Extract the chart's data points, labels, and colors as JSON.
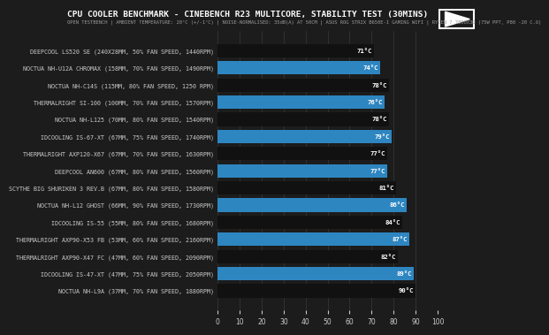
{
  "title": "CPU COOLER BENCHMARK - CINEBENCH R23 MULTICORE, STABILITY TEST (30MINS)",
  "subtitle": "OPEN TESTBENCH | AMBIENT TEMPERATURE: 20°C (+/-1°C) | NOISE-NORMALISED: 35dB(A) AT 50CM | ASUS ROG STRIX B650E-I GAMING WIFI | RYZEN 7 7800X3D (75W PPT, P80 -20 C.O)",
  "categories": [
    "DEEPCOOL LS520 SE (240X28MM, 50% FAN SPEED, 1440RPM)",
    "NOCTUA NH-U12A CHROMAX (158MM, 70% FAN SPEED, 1490RPM)",
    "NOCTUA NH-C14S (115MM, 80% FAN SPEED, 1250 RPM)",
    "THERMALRIGHT SI-100 (100MM, 70% FAN SPEED, 1570RPM)",
    "NOCTUA NH-L125 (70MM, 80% FAN SPEED, 1540RPM)",
    "IDCOOLING IS-67-XT (67MM, 75% FAN SPEED, 1740RPM)",
    "THERMALRIGHT AXP120-X67 (67MM, 70% FAN SPEED, 1630RPM)",
    "DEEPCOOL AN600 (67MM, 80% FAN SPEED, 1560RPM)",
    "SCYTHE BIG SHURIKEN 3 REV.B (67MM, 80% FAN SPEED, 1580RPM)",
    "NOCTUA NH-L12 GHOST (66MM, 90% FAN SPEED, 1730RPM)",
    "IDCOOLING IS-55 (55MM, 80% FAN SPEED, 1680RPM)",
    "THERMALRIGHT AXP90-X53 FB (53MM, 60% FAN SPEED, 2160RPM)",
    "THERMALRIGHT AXP90-X47 FC (47MM, 60% FAN SPEED, 2090RPM)",
    "IDCOOLING IS-47-XT (47MM, 75% FAN SPEED, 2050RPM)",
    "NOCTUA NH-L9A (37MM, 70% FAN SPEED, 1880RPM)"
  ],
  "values": [
    71,
    74,
    78,
    76,
    78,
    79,
    77,
    77,
    81,
    86,
    84,
    87,
    82,
    89,
    90
  ],
  "bar_colors": [
    "#111111",
    "#2e86c1",
    "#111111",
    "#2e86c1",
    "#111111",
    "#2e86c1",
    "#111111",
    "#2e86c1",
    "#111111",
    "#2e86c1",
    "#111111",
    "#2e86c1",
    "#111111",
    "#2e86c1",
    "#111111"
  ],
  "label_color": "#ffffff",
  "bg_color": "#1c1c1c",
  "fig_bg": "#1c1c1c",
  "xlim": [
    0,
    100
  ],
  "xticks": [
    0,
    10,
    20,
    30,
    40,
    50,
    60,
    70,
    80,
    90,
    100
  ],
  "tick_color": "#cccccc",
  "grid_color": "#3a3a3a",
  "title_fontsize": 6.8,
  "subtitle_fontsize": 4.0,
  "cat_fontsize": 4.8,
  "value_fontsize": 5.2,
  "xtick_fontsize": 5.5,
  "bar_height": 0.78
}
